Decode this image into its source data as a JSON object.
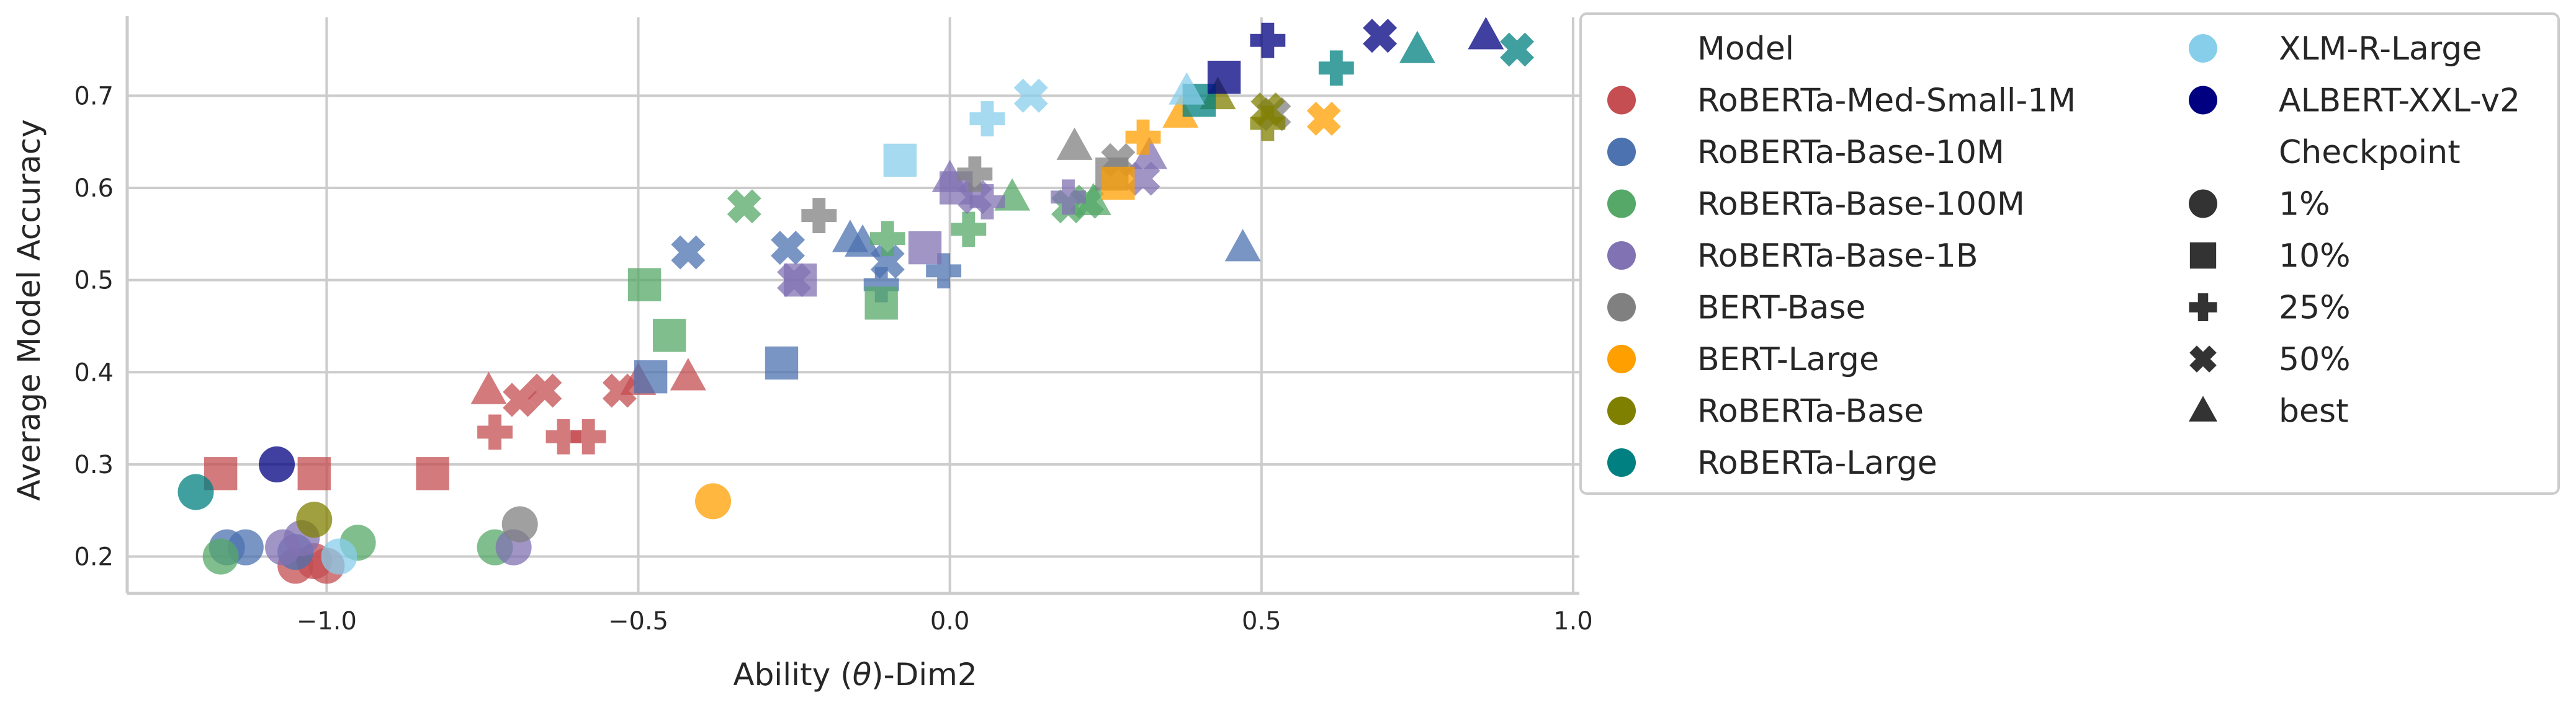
{
  "chart_data": {
    "type": "scatter",
    "title": "",
    "xlabel_parts": [
      "Ability (",
      "θ",
      ")-Dim2"
    ],
    "ylabel": "Average Model Accuracy",
    "xlim": [
      -1.32,
      1.01
    ],
    "ylim": [
      0.16,
      0.785
    ],
    "grid": true,
    "xticks": [
      -1.0,
      -0.5,
      0.0,
      0.5,
      1.0
    ],
    "xtick_labels": [
      "−1.0",
      "−0.5",
      "0.0",
      "0.5",
      "1.0"
    ],
    "yticks": [
      0.2,
      0.3,
      0.4,
      0.5,
      0.6,
      0.7
    ],
    "ytick_labels": [
      "0.2",
      "0.3",
      "0.4",
      "0.5",
      "0.6",
      "0.7"
    ],
    "legend": {
      "placement": "outside-right",
      "model_title": "Model",
      "checkpoint_title": "Checkpoint",
      "models": [
        {
          "name": "RoBERTa-Med-Small-1M",
          "color": "#c44e52"
        },
        {
          "name": "RoBERTa-Base-10M",
          "color": "#4c72b0"
        },
        {
          "name": "RoBERTa-Base-100M",
          "color": "#55a868"
        },
        {
          "name": "RoBERTa-Base-1B",
          "color": "#8172b3"
        },
        {
          "name": "BERT-Base",
          "color": "#808080"
        },
        {
          "name": "BERT-Large",
          "color": "#ff9f00"
        },
        {
          "name": "RoBERTa-Base",
          "color": "#808000"
        },
        {
          "name": "RoBERTa-Large",
          "color": "#008080"
        },
        {
          "name": "XLM-R-Large",
          "color": "#87ceeb"
        },
        {
          "name": "ALBERT-XXL-v2",
          "color": "#000080"
        }
      ],
      "checkpoints": [
        {
          "name": "1%",
          "marker": "circle"
        },
        {
          "name": "10%",
          "marker": "square"
        },
        {
          "name": "25%",
          "marker": "plus"
        },
        {
          "name": "50%",
          "marker": "x"
        },
        {
          "name": "best",
          "marker": "triangle"
        }
      ],
      "marker_color": "#333333"
    },
    "point_opacity": 0.75,
    "points": [
      {
        "model": "RoBERTa-Med-Small-1M",
        "checkpoint": "1%",
        "x": -1.05,
        "y": 0.19
      },
      {
        "model": "RoBERTa-Med-Small-1M",
        "checkpoint": "1%",
        "x": -1.02,
        "y": 0.195
      },
      {
        "model": "RoBERTa-Med-Small-1M",
        "checkpoint": "1%",
        "x": -1.0,
        "y": 0.19
      },
      {
        "model": "RoBERTa-Med-Small-1M",
        "checkpoint": "10%",
        "x": -1.17,
        "y": 0.29
      },
      {
        "model": "RoBERTa-Med-Small-1M",
        "checkpoint": "10%",
        "x": -1.02,
        "y": 0.29
      },
      {
        "model": "RoBERTa-Med-Small-1M",
        "checkpoint": "10%",
        "x": -0.83,
        "y": 0.29
      },
      {
        "model": "RoBERTa-Med-Small-1M",
        "checkpoint": "25%",
        "x": -0.73,
        "y": 0.335
      },
      {
        "model": "RoBERTa-Med-Small-1M",
        "checkpoint": "25%",
        "x": -0.62,
        "y": 0.33
      },
      {
        "model": "RoBERTa-Med-Small-1M",
        "checkpoint": "25%",
        "x": -0.58,
        "y": 0.33
      },
      {
        "model": "RoBERTa-Med-Small-1M",
        "checkpoint": "50%",
        "x": -0.69,
        "y": 0.37
      },
      {
        "model": "RoBERTa-Med-Small-1M",
        "checkpoint": "50%",
        "x": -0.65,
        "y": 0.38
      },
      {
        "model": "RoBERTa-Med-Small-1M",
        "checkpoint": "50%",
        "x": -0.53,
        "y": 0.38
      },
      {
        "model": "RoBERTa-Med-Small-1M",
        "checkpoint": "best",
        "x": -0.74,
        "y": 0.38
      },
      {
        "model": "RoBERTa-Med-Small-1M",
        "checkpoint": "best",
        "x": -0.5,
        "y": 0.39
      },
      {
        "model": "RoBERTa-Med-Small-1M",
        "checkpoint": "best",
        "x": -0.42,
        "y": 0.395
      },
      {
        "model": "RoBERTa-Base-10M",
        "checkpoint": "1%",
        "x": -1.16,
        "y": 0.21
      },
      {
        "model": "RoBERTa-Base-10M",
        "checkpoint": "1%",
        "x": -1.13,
        "y": 0.21
      },
      {
        "model": "RoBERTa-Base-10M",
        "checkpoint": "1%",
        "x": -1.05,
        "y": 0.205
      },
      {
        "model": "RoBERTa-Base-10M",
        "checkpoint": "10%",
        "x": -0.48,
        "y": 0.395
      },
      {
        "model": "RoBERTa-Base-10M",
        "checkpoint": "10%",
        "x": -0.27,
        "y": 0.41
      },
      {
        "model": "RoBERTa-Base-10M",
        "checkpoint": "25%",
        "x": -0.11,
        "y": 0.495
      },
      {
        "model": "RoBERTa-Base-10M",
        "checkpoint": "25%",
        "x": -0.01,
        "y": 0.51
      },
      {
        "model": "RoBERTa-Base-10M",
        "checkpoint": "50%",
        "x": -0.42,
        "y": 0.53
      },
      {
        "model": "RoBERTa-Base-10M",
        "checkpoint": "50%",
        "x": -0.26,
        "y": 0.535
      },
      {
        "model": "RoBERTa-Base-10M",
        "checkpoint": "50%",
        "x": -0.1,
        "y": 0.52
      },
      {
        "model": "RoBERTa-Base-10M",
        "checkpoint": "best",
        "x": -0.16,
        "y": 0.545
      },
      {
        "model": "RoBERTa-Base-10M",
        "checkpoint": "best",
        "x": -0.14,
        "y": 0.54
      },
      {
        "model": "RoBERTa-Base-10M",
        "checkpoint": "best",
        "x": 0.47,
        "y": 0.535
      },
      {
        "model": "RoBERTa-Base-100M",
        "checkpoint": "1%",
        "x": -1.17,
        "y": 0.2
      },
      {
        "model": "RoBERTa-Base-100M",
        "checkpoint": "1%",
        "x": -0.95,
        "y": 0.215
      },
      {
        "model": "RoBERTa-Base-100M",
        "checkpoint": "1%",
        "x": -0.73,
        "y": 0.21
      },
      {
        "model": "RoBERTa-Base-100M",
        "checkpoint": "10%",
        "x": -0.49,
        "y": 0.495
      },
      {
        "model": "RoBERTa-Base-100M",
        "checkpoint": "10%",
        "x": -0.45,
        "y": 0.44
      },
      {
        "model": "RoBERTa-Base-100M",
        "checkpoint": "10%",
        "x": -0.11,
        "y": 0.475
      },
      {
        "model": "RoBERTa-Base-100M",
        "checkpoint": "25%",
        "x": -0.1,
        "y": 0.545
      },
      {
        "model": "RoBERTa-Base-100M",
        "checkpoint": "25%",
        "x": 0.03,
        "y": 0.555
      },
      {
        "model": "RoBERTa-Base-100M",
        "checkpoint": "50%",
        "x": -0.33,
        "y": 0.58
      },
      {
        "model": "RoBERTa-Base-100M",
        "checkpoint": "50%",
        "x": 0.19,
        "y": 0.58
      },
      {
        "model": "RoBERTa-Base-100M",
        "checkpoint": "50%",
        "x": 0.22,
        "y": 0.585
      },
      {
        "model": "RoBERTa-Base-100M",
        "checkpoint": "best",
        "x": 0.1,
        "y": 0.59
      },
      {
        "model": "RoBERTa-Base-100M",
        "checkpoint": "best",
        "x": 0.23,
        "y": 0.585
      },
      {
        "model": "RoBERTa-Base-1B",
        "checkpoint": "1%",
        "x": -1.07,
        "y": 0.21
      },
      {
        "model": "RoBERTa-Base-1B",
        "checkpoint": "1%",
        "x": -1.04,
        "y": 0.22
      },
      {
        "model": "RoBERTa-Base-1B",
        "checkpoint": "1%",
        "x": -0.7,
        "y": 0.21
      },
      {
        "model": "RoBERTa-Base-1B",
        "checkpoint": "10%",
        "x": -0.24,
        "y": 0.5
      },
      {
        "model": "RoBERTa-Base-1B",
        "checkpoint": "10%",
        "x": -0.04,
        "y": 0.535
      },
      {
        "model": "RoBERTa-Base-1B",
        "checkpoint": "10%",
        "x": 0.01,
        "y": 0.6
      },
      {
        "model": "RoBERTa-Base-1B",
        "checkpoint": "25%",
        "x": 0.06,
        "y": 0.585
      },
      {
        "model": "RoBERTa-Base-1B",
        "checkpoint": "25%",
        "x": 0.19,
        "y": 0.59
      },
      {
        "model": "RoBERTa-Base-1B",
        "checkpoint": "50%",
        "x": -0.25,
        "y": 0.5
      },
      {
        "model": "RoBERTa-Base-1B",
        "checkpoint": "50%",
        "x": 0.04,
        "y": 0.59
      },
      {
        "model": "RoBERTa-Base-1B",
        "checkpoint": "50%",
        "x": 0.31,
        "y": 0.61
      },
      {
        "model": "RoBERTa-Base-1B",
        "checkpoint": "best",
        "x": 0.0,
        "y": 0.61
      },
      {
        "model": "RoBERTa-Base-1B",
        "checkpoint": "best",
        "x": 0.32,
        "y": 0.635
      },
      {
        "model": "BERT-Base",
        "checkpoint": "1%",
        "x": -0.69,
        "y": 0.235
      },
      {
        "model": "BERT-Base",
        "checkpoint": "10%",
        "x": 0.26,
        "y": 0.615
      },
      {
        "model": "BERT-Base",
        "checkpoint": "25%",
        "x": -0.21,
        "y": 0.57
      },
      {
        "model": "BERT-Base",
        "checkpoint": "25%",
        "x": 0.04,
        "y": 0.615
      },
      {
        "model": "BERT-Base",
        "checkpoint": "50%",
        "x": 0.27,
        "y": 0.63
      },
      {
        "model": "BERT-Base",
        "checkpoint": "50%",
        "x": 0.52,
        "y": 0.68
      },
      {
        "model": "BERT-Base",
        "checkpoint": "best",
        "x": 0.2,
        "y": 0.645
      },
      {
        "model": "BERT-Large",
        "checkpoint": "1%",
        "x": -0.38,
        "y": 0.26
      },
      {
        "model": "BERT-Large",
        "checkpoint": "10%",
        "x": 0.27,
        "y": 0.605
      },
      {
        "model": "BERT-Large",
        "checkpoint": "25%",
        "x": 0.31,
        "y": 0.655
      },
      {
        "model": "BERT-Large",
        "checkpoint": "50%",
        "x": 0.6,
        "y": 0.675
      },
      {
        "model": "BERT-Large",
        "checkpoint": "best",
        "x": 0.37,
        "y": 0.68
      },
      {
        "model": "RoBERTa-Base",
        "checkpoint": "1%",
        "x": -1.02,
        "y": 0.24
      },
      {
        "model": "RoBERTa-Base",
        "checkpoint": "25%",
        "x": 0.51,
        "y": 0.67
      },
      {
        "model": "RoBERTa-Base",
        "checkpoint": "50%",
        "x": 0.51,
        "y": 0.685
      },
      {
        "model": "RoBERTa-Base",
        "checkpoint": "best",
        "x": 0.43,
        "y": 0.7
      },
      {
        "model": "RoBERTa-Large",
        "checkpoint": "1%",
        "x": -1.21,
        "y": 0.27
      },
      {
        "model": "RoBERTa-Large",
        "checkpoint": "10%",
        "x": 0.4,
        "y": 0.695
      },
      {
        "model": "RoBERTa-Large",
        "checkpoint": "25%",
        "x": 0.62,
        "y": 0.73
      },
      {
        "model": "RoBERTa-Large",
        "checkpoint": "50%",
        "x": 0.91,
        "y": 0.75
      },
      {
        "model": "RoBERTa-Large",
        "checkpoint": "best",
        "x": 0.75,
        "y": 0.75
      },
      {
        "model": "XLM-R-Large",
        "checkpoint": "1%",
        "x": -0.98,
        "y": 0.2
      },
      {
        "model": "XLM-R-Large",
        "checkpoint": "10%",
        "x": -0.08,
        "y": 0.63
      },
      {
        "model": "XLM-R-Large",
        "checkpoint": "25%",
        "x": 0.06,
        "y": 0.675
      },
      {
        "model": "XLM-R-Large",
        "checkpoint": "50%",
        "x": 0.13,
        "y": 0.7
      },
      {
        "model": "XLM-R-Large",
        "checkpoint": "best",
        "x": 0.38,
        "y": 0.705
      },
      {
        "model": "ALBERT-XXL-v2",
        "checkpoint": "1%",
        "x": -1.08,
        "y": 0.3
      },
      {
        "model": "ALBERT-XXL-v2",
        "checkpoint": "10%",
        "x": 0.44,
        "y": 0.72
      },
      {
        "model": "ALBERT-XXL-v2",
        "checkpoint": "25%",
        "x": 0.51,
        "y": 0.76
      },
      {
        "model": "ALBERT-XXL-v2",
        "checkpoint": "50%",
        "x": 0.69,
        "y": 0.765
      },
      {
        "model": "ALBERT-XXL-v2",
        "checkpoint": "best",
        "x": 0.86,
        "y": 0.765
      }
    ]
  }
}
